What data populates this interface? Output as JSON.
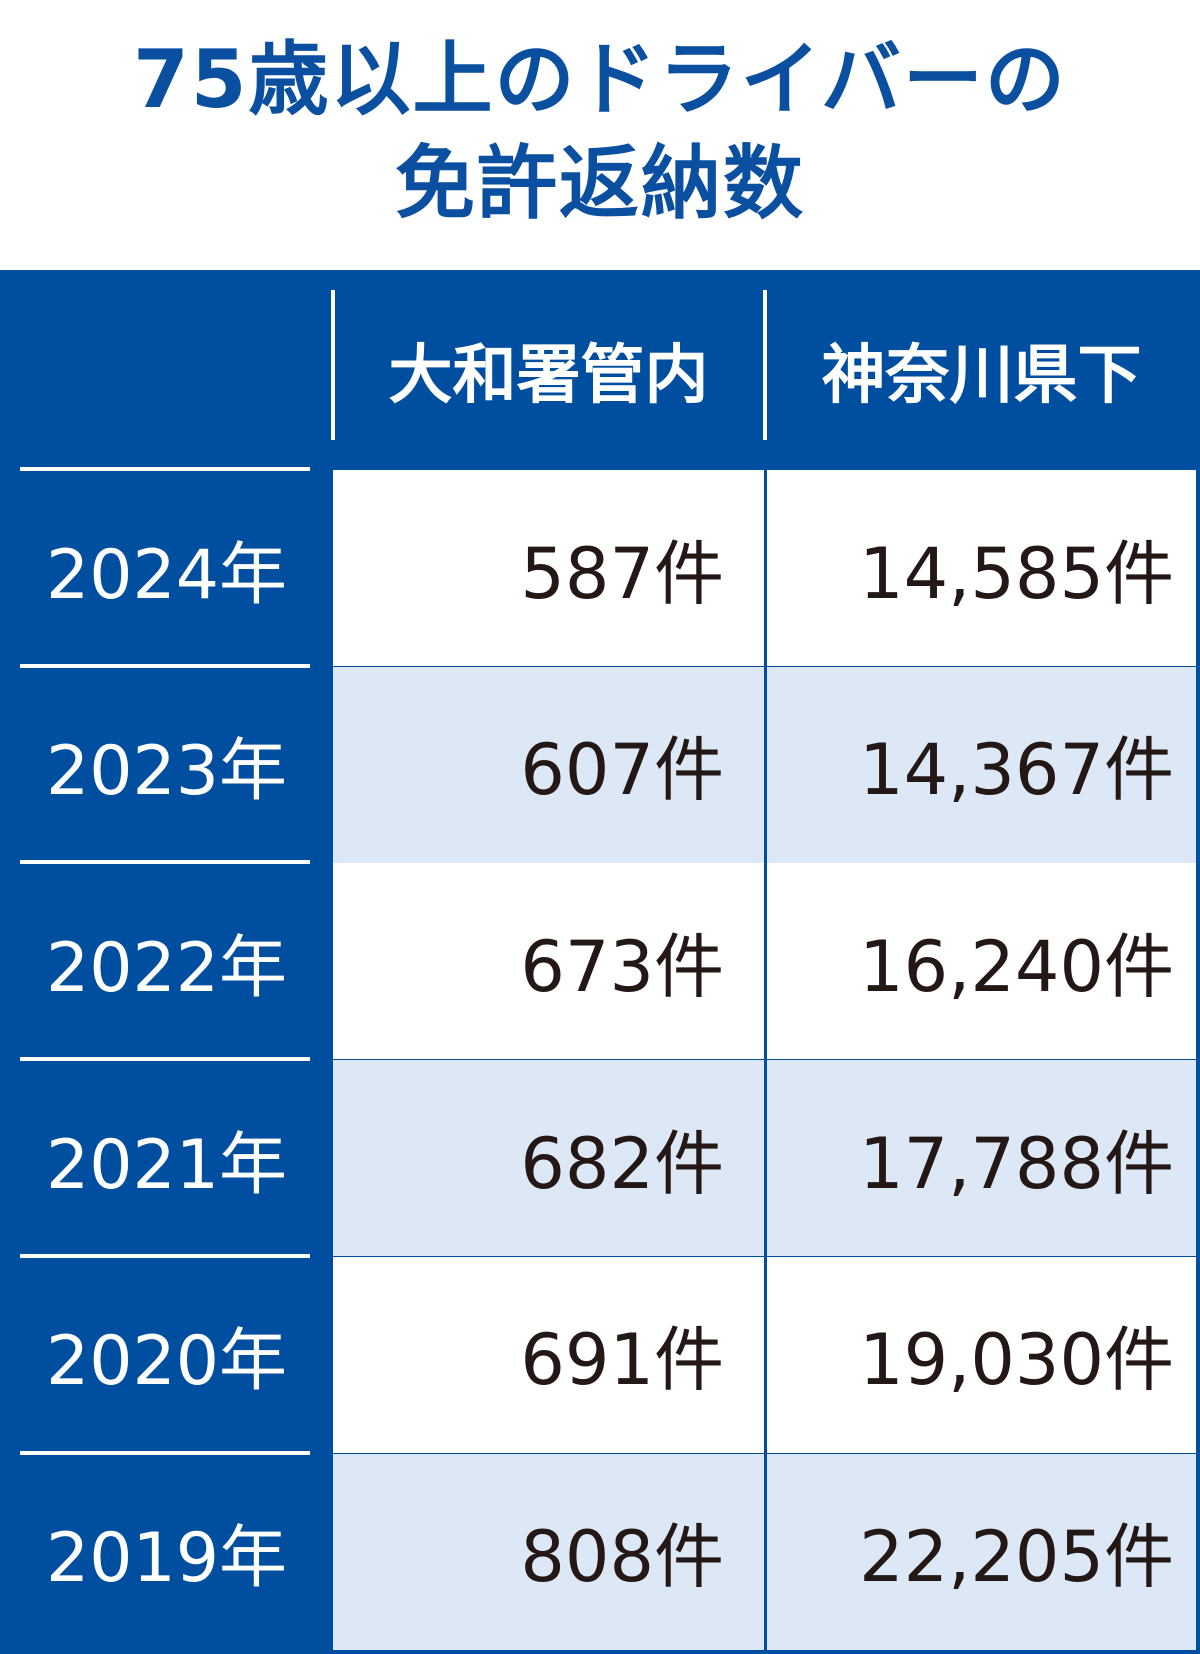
{
  "title_line1": "75歳以上のドライバーの",
  "title_line2": "免許返納数",
  "colors": {
    "accent": "#004e9f",
    "row_alt": "#dde8f6",
    "row": "#ffffff",
    "text": "#231815"
  },
  "chart_data": {
    "type": "table",
    "columns": [
      "",
      "大和署管内",
      "神奈川県下"
    ],
    "rows": [
      {
        "year": "2024年",
        "yamato": "587件",
        "kanagawa": "14,585件"
      },
      {
        "year": "2023年",
        "yamato": "607件",
        "kanagawa": "14,367件"
      },
      {
        "year": "2022年",
        "yamato": "673件",
        "kanagawa": "16,240件"
      },
      {
        "year": "2021年",
        "yamato": "682件",
        "kanagawa": "17,788件"
      },
      {
        "year": "2020年",
        "yamato": "691件",
        "kanagawa": "19,030件"
      },
      {
        "year": "2019年",
        "yamato": "808件",
        "kanagawa": "22,205件"
      }
    ]
  }
}
